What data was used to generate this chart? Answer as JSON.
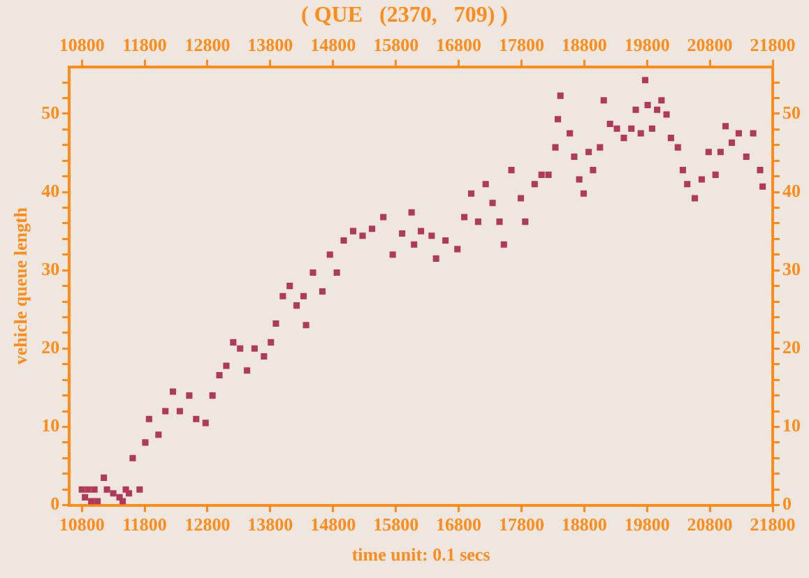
{
  "chart_data": {
    "type": "scatter",
    "title": "( QUE   (2370,   709) )",
    "xlabel": "time unit: 0.1 secs",
    "ylabel": "vehicle queue length",
    "xlim": [
      10600,
      21800
    ],
    "xticks": [
      10800,
      11800,
      12800,
      13800,
      14800,
      15800,
      16800,
      17800,
      18800,
      19800,
      20800,
      21800
    ],
    "x2lim": [
      10600,
      21800
    ],
    "x2ticks": [
      10800,
      11800,
      12800,
      13800,
      14800,
      15800,
      16800,
      17800,
      18800,
      19800,
      20800,
      21800
    ],
    "ylim": [
      0,
      56
    ],
    "yticks": [
      0,
      {
        "value": 2,
        "label": null
      },
      {
        "value": 4,
        "label": null
      },
      {
        "value": 6,
        "label": null
      },
      {
        "value": 8,
        "label": null
      },
      10,
      {
        "value": 12,
        "label": null
      },
      {
        "value": 14,
        "label": null
      },
      {
        "value": 16,
        "label": null
      },
      {
        "value": 18,
        "label": null
      },
      20,
      {
        "value": 22,
        "label": null
      },
      {
        "value": 24,
        "label": null
      },
      {
        "value": 26,
        "label": null
      },
      {
        "value": 28,
        "label": null
      },
      30,
      {
        "value": 32,
        "label": null
      },
      {
        "value": 34,
        "label": null
      },
      {
        "value": 36,
        "label": null
      },
      {
        "value": 38,
        "label": null
      },
      40,
      {
        "value": 42,
        "label": null
      },
      {
        "value": 44,
        "label": null
      },
      {
        "value": 46,
        "label": null
      },
      {
        "value": 48,
        "label": null
      },
      50,
      {
        "value": 52,
        "label": null
      },
      {
        "value": 54,
        "label": null
      }
    ],
    "y2lim": [
      0,
      56
    ],
    "y2ticks": [
      0,
      {
        "value": 2,
        "label": null
      },
      {
        "value": 4,
        "label": null
      },
      {
        "value": 6,
        "label": null
      },
      {
        "value": 8,
        "label": null
      },
      10,
      {
        "value": 12,
        "label": null
      },
      {
        "value": 14,
        "label": null
      },
      {
        "value": 16,
        "label": null
      },
      {
        "value": 18,
        "label": null
      },
      20,
      {
        "value": 22,
        "label": null
      },
      {
        "value": 24,
        "label": null
      },
      {
        "value": 26,
        "label": null
      },
      {
        "value": 28,
        "label": null
      },
      30,
      {
        "value": 32,
        "label": null
      },
      {
        "value": 34,
        "label": null
      },
      {
        "value": 36,
        "label": null
      },
      {
        "value": 38,
        "label": null
      },
      40,
      {
        "value": 42,
        "label": null
      },
      {
        "value": 44,
        "label": null
      },
      {
        "value": 46,
        "label": null
      },
      {
        "value": 48,
        "label": null
      },
      50,
      {
        "value": 52,
        "label": null
      },
      {
        "value": 54,
        "label": null
      }
    ],
    "grid": false,
    "legend": false,
    "marker": "square",
    "series": [
      {
        "color": "#b03a5a",
        "x": [
          10800,
          10850,
          10900,
          10950,
          11000,
          11050,
          11150,
          11200,
          11300,
          11400,
          11450,
          11500,
          11550,
          11610,
          11720,
          11810,
          11870,
          12020,
          12130,
          12250,
          12360,
          12510,
          12620,
          12770,
          12880,
          12990,
          13100,
          13210,
          13320,
          13430,
          13550,
          13700,
          13810,
          13890,
          14000,
          14110,
          14220,
          14330,
          14370,
          14480,
          14630,
          14750,
          14860,
          14970,
          15120,
          15270,
          15420,
          15600,
          15750,
          15900,
          16050,
          16090,
          16200,
          16370,
          16440,
          16590,
          16780,
          16890,
          17000,
          17110,
          17230,
          17340,
          17450,
          17520,
          17640,
          17790,
          17860,
          18010,
          18120,
          18230,
          18340,
          18380,
          18420,
          18570,
          18640,
          18720,
          18790,
          18870,
          18940,
          19050,
          19110,
          19210,
          19320,
          19430,
          19550,
          19620,
          19700,
          19770,
          19810,
          19880,
          19960,
          20030,
          20110,
          20180,
          20290,
          20370,
          20440,
          20560,
          20670,
          20780,
          20890,
          20970,
          21050,
          21150,
          21260,
          21380,
          21490,
          21600,
          21640
        ],
        "values": [
          2,
          1,
          2,
          0.5,
          2,
          0.5,
          3.5,
          2,
          1.5,
          1,
          0.5,
          2,
          1.5,
          6,
          2,
          8,
          11,
          9,
          12,
          14.5,
          12,
          14,
          11,
          10.5,
          14,
          16.6,
          17.8,
          20.8,
          20,
          17.2,
          20,
          19,
          20.8,
          23.2,
          26.7,
          28,
          25.5,
          26.7,
          23,
          29.7,
          27.3,
          32,
          29.7,
          33.8,
          35,
          34.4,
          35.3,
          36.8,
          32,
          34.7,
          37.4,
          33.3,
          35,
          34.4,
          31.5,
          33.8,
          32.7,
          36.8,
          39.8,
          36.2,
          41,
          38.6,
          36.2,
          33.3,
          42.8,
          39.2,
          36.2,
          41,
          42.2,
          42.2,
          45.7,
          49.3,
          52.3,
          47.5,
          44.5,
          41.6,
          39.8,
          45.1,
          42.8,
          45.7,
          51.7,
          48.7,
          48.1,
          46.9,
          48.1,
          50.5,
          47.5,
          54.3,
          51.1,
          48.1,
          50.5,
          51.7,
          49.9,
          46.9,
          45.7,
          42.8,
          41,
          39.2,
          41.6,
          45.1,
          42.2,
          45.1,
          48.4,
          46.3,
          47.5,
          44.5,
          47.5,
          42.8,
          40.7
        ]
      }
    ]
  }
}
